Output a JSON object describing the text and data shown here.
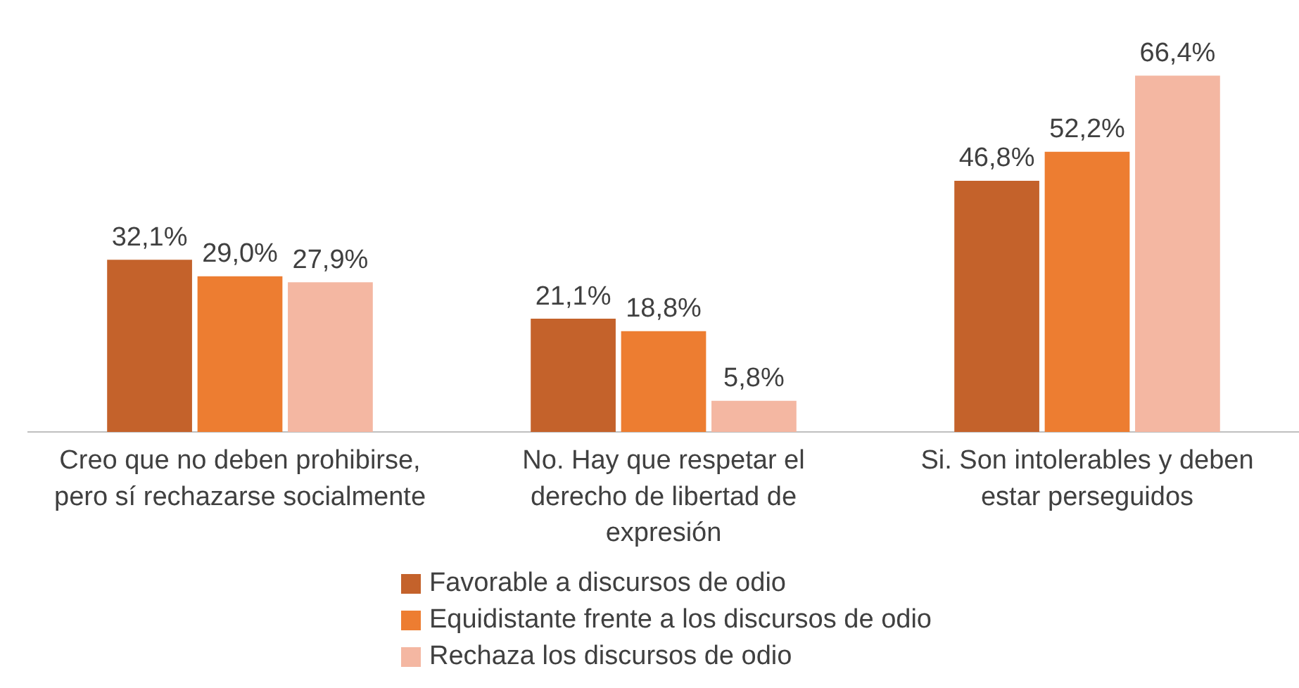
{
  "chart_data": {
    "type": "bar",
    "categories": [
      "Creo que no deben prohibirse, pero sí rechazarse socialmente",
      "No. Hay que respetar el derecho de libertad de expresión",
      "Si. Son intolerables y deben estar perseguidos"
    ],
    "series": [
      {
        "name": "Favorable a discursos de odio",
        "color": "#c4622b",
        "values": [
          32.1,
          21.1,
          46.8
        ],
        "value_labels": [
          "32,1%",
          "21,1%",
          "46,8%"
        ]
      },
      {
        "name": "Equidistante frente a los discursos de odio",
        "color": "#ed7d31",
        "values": [
          29.0,
          18.8,
          52.2
        ],
        "value_labels": [
          "29,0%",
          "18,8%",
          "52,2%"
        ]
      },
      {
        "name": "Rechaza los discursos de odio",
        "color": "#f4b7a2",
        "values": [
          27.9,
          5.8,
          66.4
        ],
        "value_labels": [
          "27,9%",
          "5,8%",
          "66,4%"
        ]
      }
    ],
    "grid": false,
    "legend": "bottom"
  }
}
